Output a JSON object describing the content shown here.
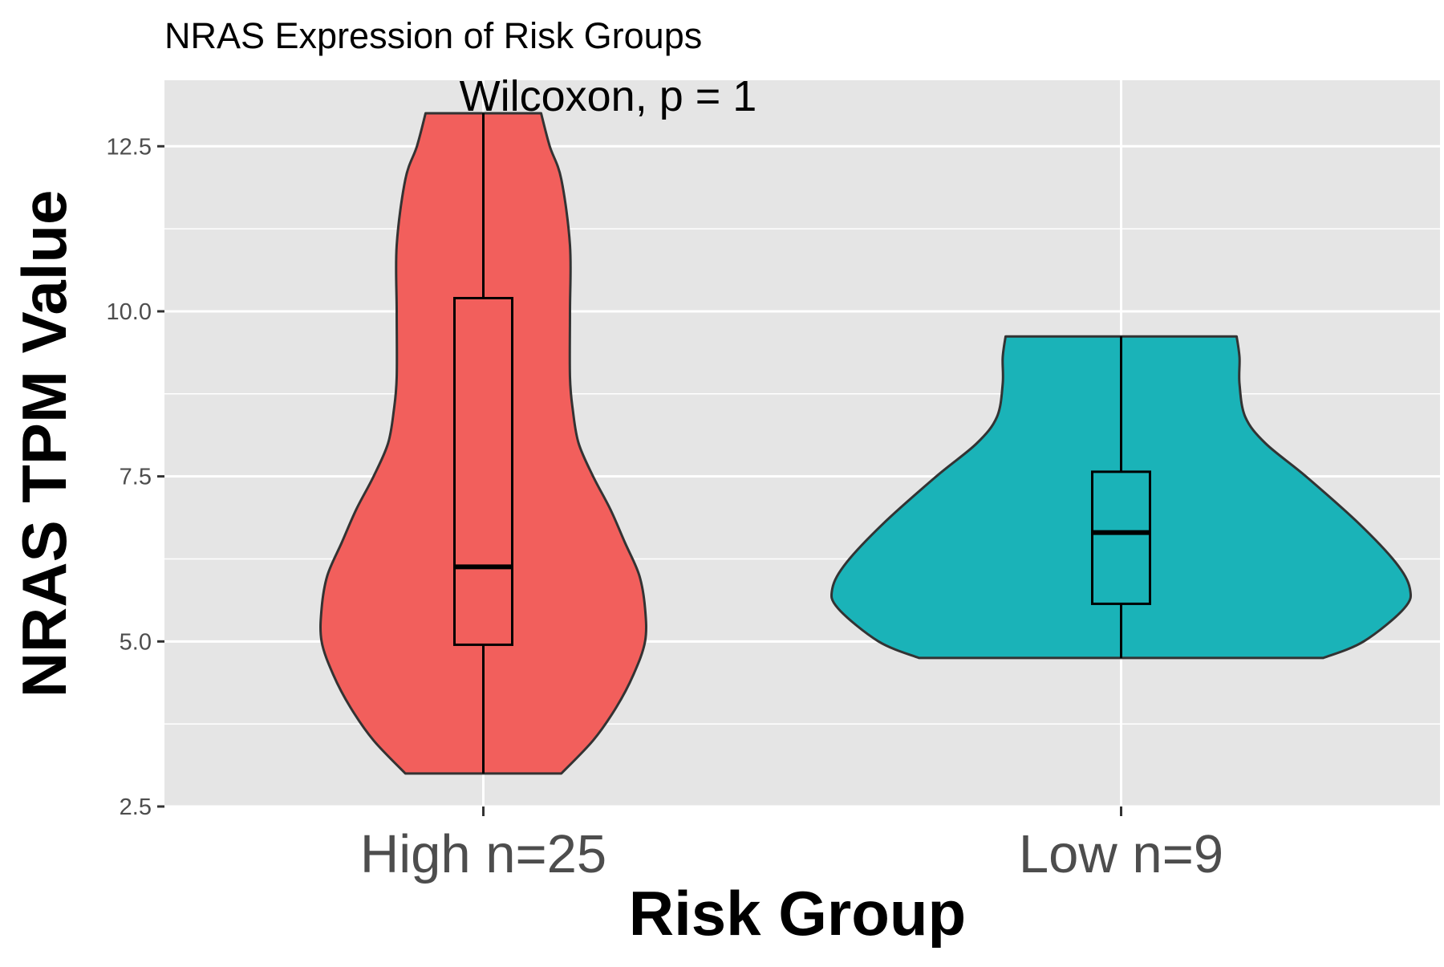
{
  "chart_data": {
    "type": "violin",
    "title": "NRAS Expression of Risk Groups",
    "annotation": "Wilcoxon, p = 1",
    "xlabel": "Risk Group",
    "ylabel": "NRAS TPM Value",
    "ylim": [
      2.5,
      13.5
    ],
    "yticks": [
      2.5,
      5.0,
      7.5,
      10.0,
      12.5
    ],
    "ytick_labels": [
      "2.5",
      "5.0",
      "7.5",
      "10.0",
      "12.5"
    ],
    "grid": true,
    "legend": "none",
    "background": "#e5e5e5",
    "categories": [
      "High n=25",
      "Low n=9"
    ],
    "groups": [
      {
        "category": "High n=25",
        "color": "#f25f5c",
        "min": 3.0,
        "max": 13.0,
        "box": {
          "q1": 4.95,
          "median": 6.13,
          "q3": 10.2
        },
        "density_profile": [
          [
            3.0,
            0.27
          ],
          [
            3.5,
            0.38
          ],
          [
            4.0,
            0.46
          ],
          [
            4.5,
            0.52
          ],
          [
            5.0,
            0.56
          ],
          [
            5.5,
            0.56
          ],
          [
            6.0,
            0.54
          ],
          [
            6.5,
            0.49
          ],
          [
            7.0,
            0.44
          ],
          [
            7.5,
            0.38
          ],
          [
            8.0,
            0.33
          ],
          [
            8.5,
            0.31
          ],
          [
            9.0,
            0.3
          ],
          [
            10.0,
            0.3
          ],
          [
            11.0,
            0.3
          ],
          [
            12.0,
            0.27
          ],
          [
            12.5,
            0.23
          ],
          [
            13.0,
            0.2
          ]
        ]
      },
      {
        "category": "Low n=9",
        "color": "#1ab3b8",
        "min": 4.75,
        "max": 9.62,
        "box": {
          "q1": 5.57,
          "median": 6.65,
          "q3": 7.57
        },
        "density_profile": [
          [
            4.75,
            0.7
          ],
          [
            5.0,
            0.84
          ],
          [
            5.5,
            0.98
          ],
          [
            5.8,
            1.0
          ],
          [
            6.2,
            0.95
          ],
          [
            6.8,
            0.82
          ],
          [
            7.5,
            0.64
          ],
          [
            8.0,
            0.5
          ],
          [
            8.4,
            0.43
          ],
          [
            8.9,
            0.41
          ],
          [
            9.3,
            0.41
          ],
          [
            9.62,
            0.4
          ]
        ]
      }
    ]
  }
}
